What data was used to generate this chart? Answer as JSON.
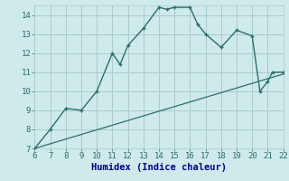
{
  "xlabel": "Humidex (Indice chaleur)",
  "xlim": [
    6,
    22
  ],
  "ylim": [
    7,
    14.5
  ],
  "yticks": [
    7,
    8,
    9,
    10,
    11,
    12,
    13,
    14
  ],
  "xticks": [
    6,
    7,
    8,
    9,
    10,
    11,
    12,
    13,
    14,
    15,
    16,
    17,
    18,
    19,
    20,
    21,
    22
  ],
  "curve_x": [
    6,
    7,
    8,
    9,
    10,
    11,
    11.5,
    12,
    13,
    14,
    14.5,
    15,
    16,
    16.5,
    17,
    18,
    19,
    20,
    20.5,
    21,
    21.3,
    22
  ],
  "curve_y": [
    7.0,
    8.0,
    9.1,
    9.0,
    10.0,
    12.0,
    11.4,
    12.4,
    13.3,
    14.4,
    14.3,
    14.4,
    14.4,
    13.5,
    13.0,
    12.3,
    13.2,
    12.9,
    10.0,
    10.5,
    11.0,
    11.0
  ],
  "line_x": [
    6,
    22
  ],
  "line_y": [
    7.0,
    10.9
  ],
  "curve_color": "#2d6e6a",
  "line_color": "#2d6e6a",
  "bg_color": "#ceeaea",
  "grid_color": "#aacccc",
  "tick_color": "#2d6e6a",
  "label_color": "#00008b",
  "tick_fontsize": 6.5,
  "xlabel_fontsize": 7.5
}
